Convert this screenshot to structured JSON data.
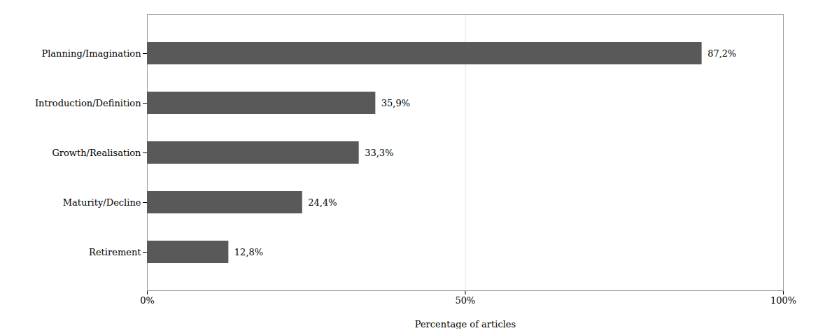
{
  "chart_data": {
    "type": "bar",
    "orientation": "horizontal",
    "categories": [
      "Planning/Imagination",
      "Introduction/Definition",
      "Growth/Realisation",
      "Maturity/Decline",
      "Retirement"
    ],
    "values": [
      87.2,
      35.9,
      33.3,
      24.4,
      12.8
    ],
    "value_labels": [
      "87,2%",
      "35,9%",
      "33,3%",
      "24,4%",
      "12,8%"
    ],
    "data_labels": true,
    "color": "#595959",
    "xlabel": "Percentage of articles",
    "xlim": [
      0,
      100
    ],
    "xticks": [
      {
        "value": 0,
        "label": "0%"
      },
      {
        "value": 50,
        "label": "50%"
      },
      {
        "value": 100,
        "label": "100%"
      }
    ],
    "grid": true
  }
}
